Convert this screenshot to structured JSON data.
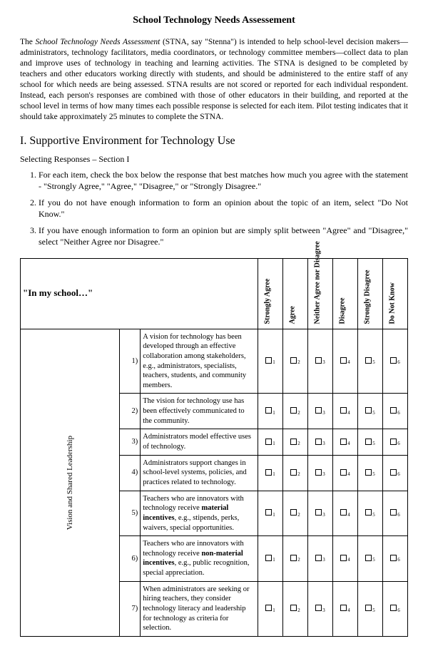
{
  "title": "School Technology Needs Assessement",
  "intro_prefix": "The ",
  "intro_italic": "School Technology Needs Assessment",
  "intro_rest": " (STNA, say \"Stenna\") is intended to help school-level decision makers—administrators, technology facilitators, media coordinators, or technology committee members—collect data to plan and improve uses of technology in teaching and learning activities. The STNA is designed to be completed by teachers and other educators working directly with students, and should be administered to the entire staff of any school for which needs are being assessed. STNA results are not scored or reported for each individual respondent. Instead, each person's responses are combined with those of other educators in their building, and reported at the school level in terms of how many times each possible response is selected for each item. Pilot testing indicates that it should take approximately 25 minutes to complete the STNA.",
  "section_heading": "I. Supportive Environment for Technology Use",
  "section_sub": "Selecting Responses – Section I",
  "instructions": [
    "For each item, check the box below the response that best matches how much you agree with the statement - \"Strongly Agree,\" \"Agree,\" \"Disagree,\" or \"Strongly Disagree.\"",
    "If you do not have enough information to form an opinion about the topic of an item, select \"Do Not Know.\"",
    "If you have enough information to form an opinion but are simply split between \"Agree\" and \"Disagree,\" select \"Neither Agree nor Disagree.\""
  ],
  "stem": "\"In my school…\"",
  "columns": [
    "Strongly Agree",
    "Agree",
    "Neither Agree nor Disagree",
    "Disagree",
    "Strongly Disagree",
    "Do Not Know"
  ],
  "group_label": "Vision and Shared Leadership",
  "items": [
    {
      "n": "1)",
      "text": "A vision for technology has been developed through an effective collaboration among stakeholders, e.g., administrators, specialists, teachers, students, and community members."
    },
    {
      "n": "2)",
      "text": "The vision for technology use has been effectively communicated to the community."
    },
    {
      "n": "3)",
      "text": "Administrators model effective uses of technology."
    },
    {
      "n": "4)",
      "text": "Administrators support changes in school-level systems, policies, and practices related to technology."
    },
    {
      "n": "5)",
      "html": "Teachers who are innovators with technology receive <span class=\"bold\">material incentives</span>, e.g., stipends, perks, waivers, special opportunities."
    },
    {
      "n": "6)",
      "html": "Teachers who are innovators with technology receive <span class=\"bold\">non-material incentives</span>, e.g., public recognition, special appreciation."
    },
    {
      "n": "7)",
      "text": "When administrators are seeking or hiring teachers, they consider technology literacy and leadership for technology as criteria for selection."
    }
  ],
  "colors": {
    "border": "#000000",
    "text": "#000000",
    "bg": "#ffffff"
  }
}
